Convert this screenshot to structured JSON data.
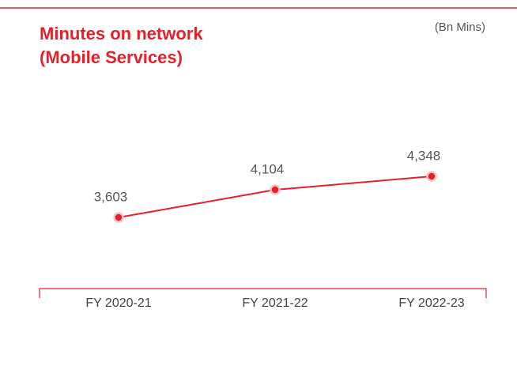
{
  "chart_data": {
    "type": "line",
    "title": [
      "Minutes on network",
      "(Mobile Services)"
    ],
    "unit": "(Bn Mins)",
    "categories": [
      "FY 2020-21",
      "FY 2021-22",
      "FY 2022-23"
    ],
    "values": [
      3603,
      4104,
      4348
    ],
    "value_labels": [
      "3,603",
      "4,104",
      "4,348"
    ],
    "color": "#e4202a"
  }
}
